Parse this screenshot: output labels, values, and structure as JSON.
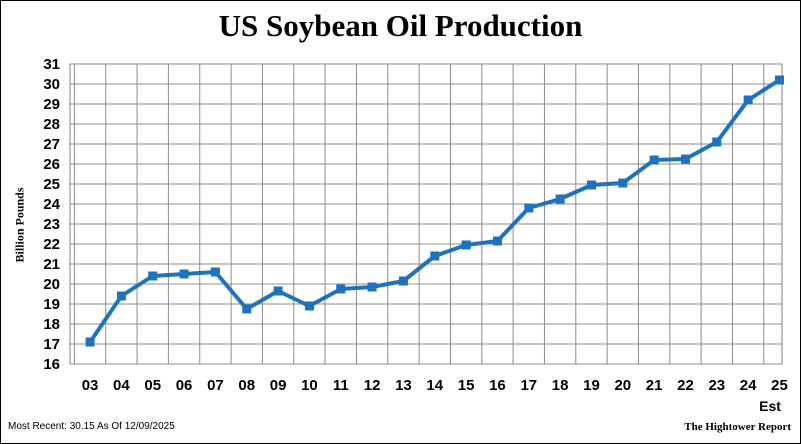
{
  "chart_data": {
    "type": "line",
    "title": "US Soybean Oil Production",
    "ylabel": "Billion Pounds",
    "xlabel": "",
    "categories": [
      "03",
      "04",
      "05",
      "06",
      "07",
      "08",
      "09",
      "10",
      "11",
      "12",
      "13",
      "14",
      "15",
      "16",
      "17",
      "18",
      "19",
      "20",
      "21",
      "22",
      "23",
      "24",
      "25"
    ],
    "x_annotation": "Est",
    "series": [
      {
        "values": [
          17.1,
          19.4,
          20.4,
          20.5,
          20.6,
          18.75,
          19.65,
          18.9,
          19.75,
          19.85,
          20.15,
          21.4,
          21.95,
          22.15,
          23.8,
          24.25,
          24.95,
          25.05,
          26.2,
          26.25,
          27.1,
          29.2,
          30.2
        ],
        "color": "#1f72bd"
      }
    ],
    "ylim": [
      16,
      31
    ],
    "yticks": [
      16,
      17,
      18,
      19,
      20,
      21,
      22,
      23,
      24,
      25,
      26,
      27,
      28,
      29,
      30,
      31
    ],
    "grid": true
  },
  "footer": {
    "most_recent": "Most Recent: 30.15 As Of 12/09/2025",
    "source": "The Hightower Report"
  }
}
